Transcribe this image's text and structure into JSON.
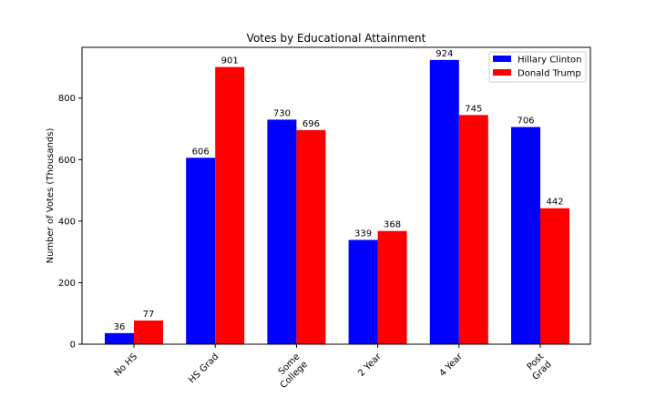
{
  "chart_data": {
    "type": "bar",
    "title": "Votes by Educational Attainment",
    "xlabel": "",
    "ylabel": "Number of Votes (Thousands)",
    "ylim": [
      0,
      965
    ],
    "yticks": [
      0,
      200,
      400,
      600,
      800
    ],
    "categories": [
      [
        "No HS"
      ],
      [
        "HS Grad"
      ],
      [
        "Some",
        "College"
      ],
      [
        "2 Year"
      ],
      [
        "4 Year"
      ],
      [
        "Post",
        "Grad"
      ]
    ],
    "series": [
      {
        "name": "Hillary Clinton",
        "color": "#0000ff",
        "values": [
          36,
          606,
          730,
          339,
          924,
          706
        ]
      },
      {
        "name": "Donald Trump",
        "color": "#ff0000",
        "values": [
          77,
          901,
          696,
          368,
          745,
          442
        ]
      }
    ],
    "grid": false,
    "legend_position": "top-right"
  }
}
